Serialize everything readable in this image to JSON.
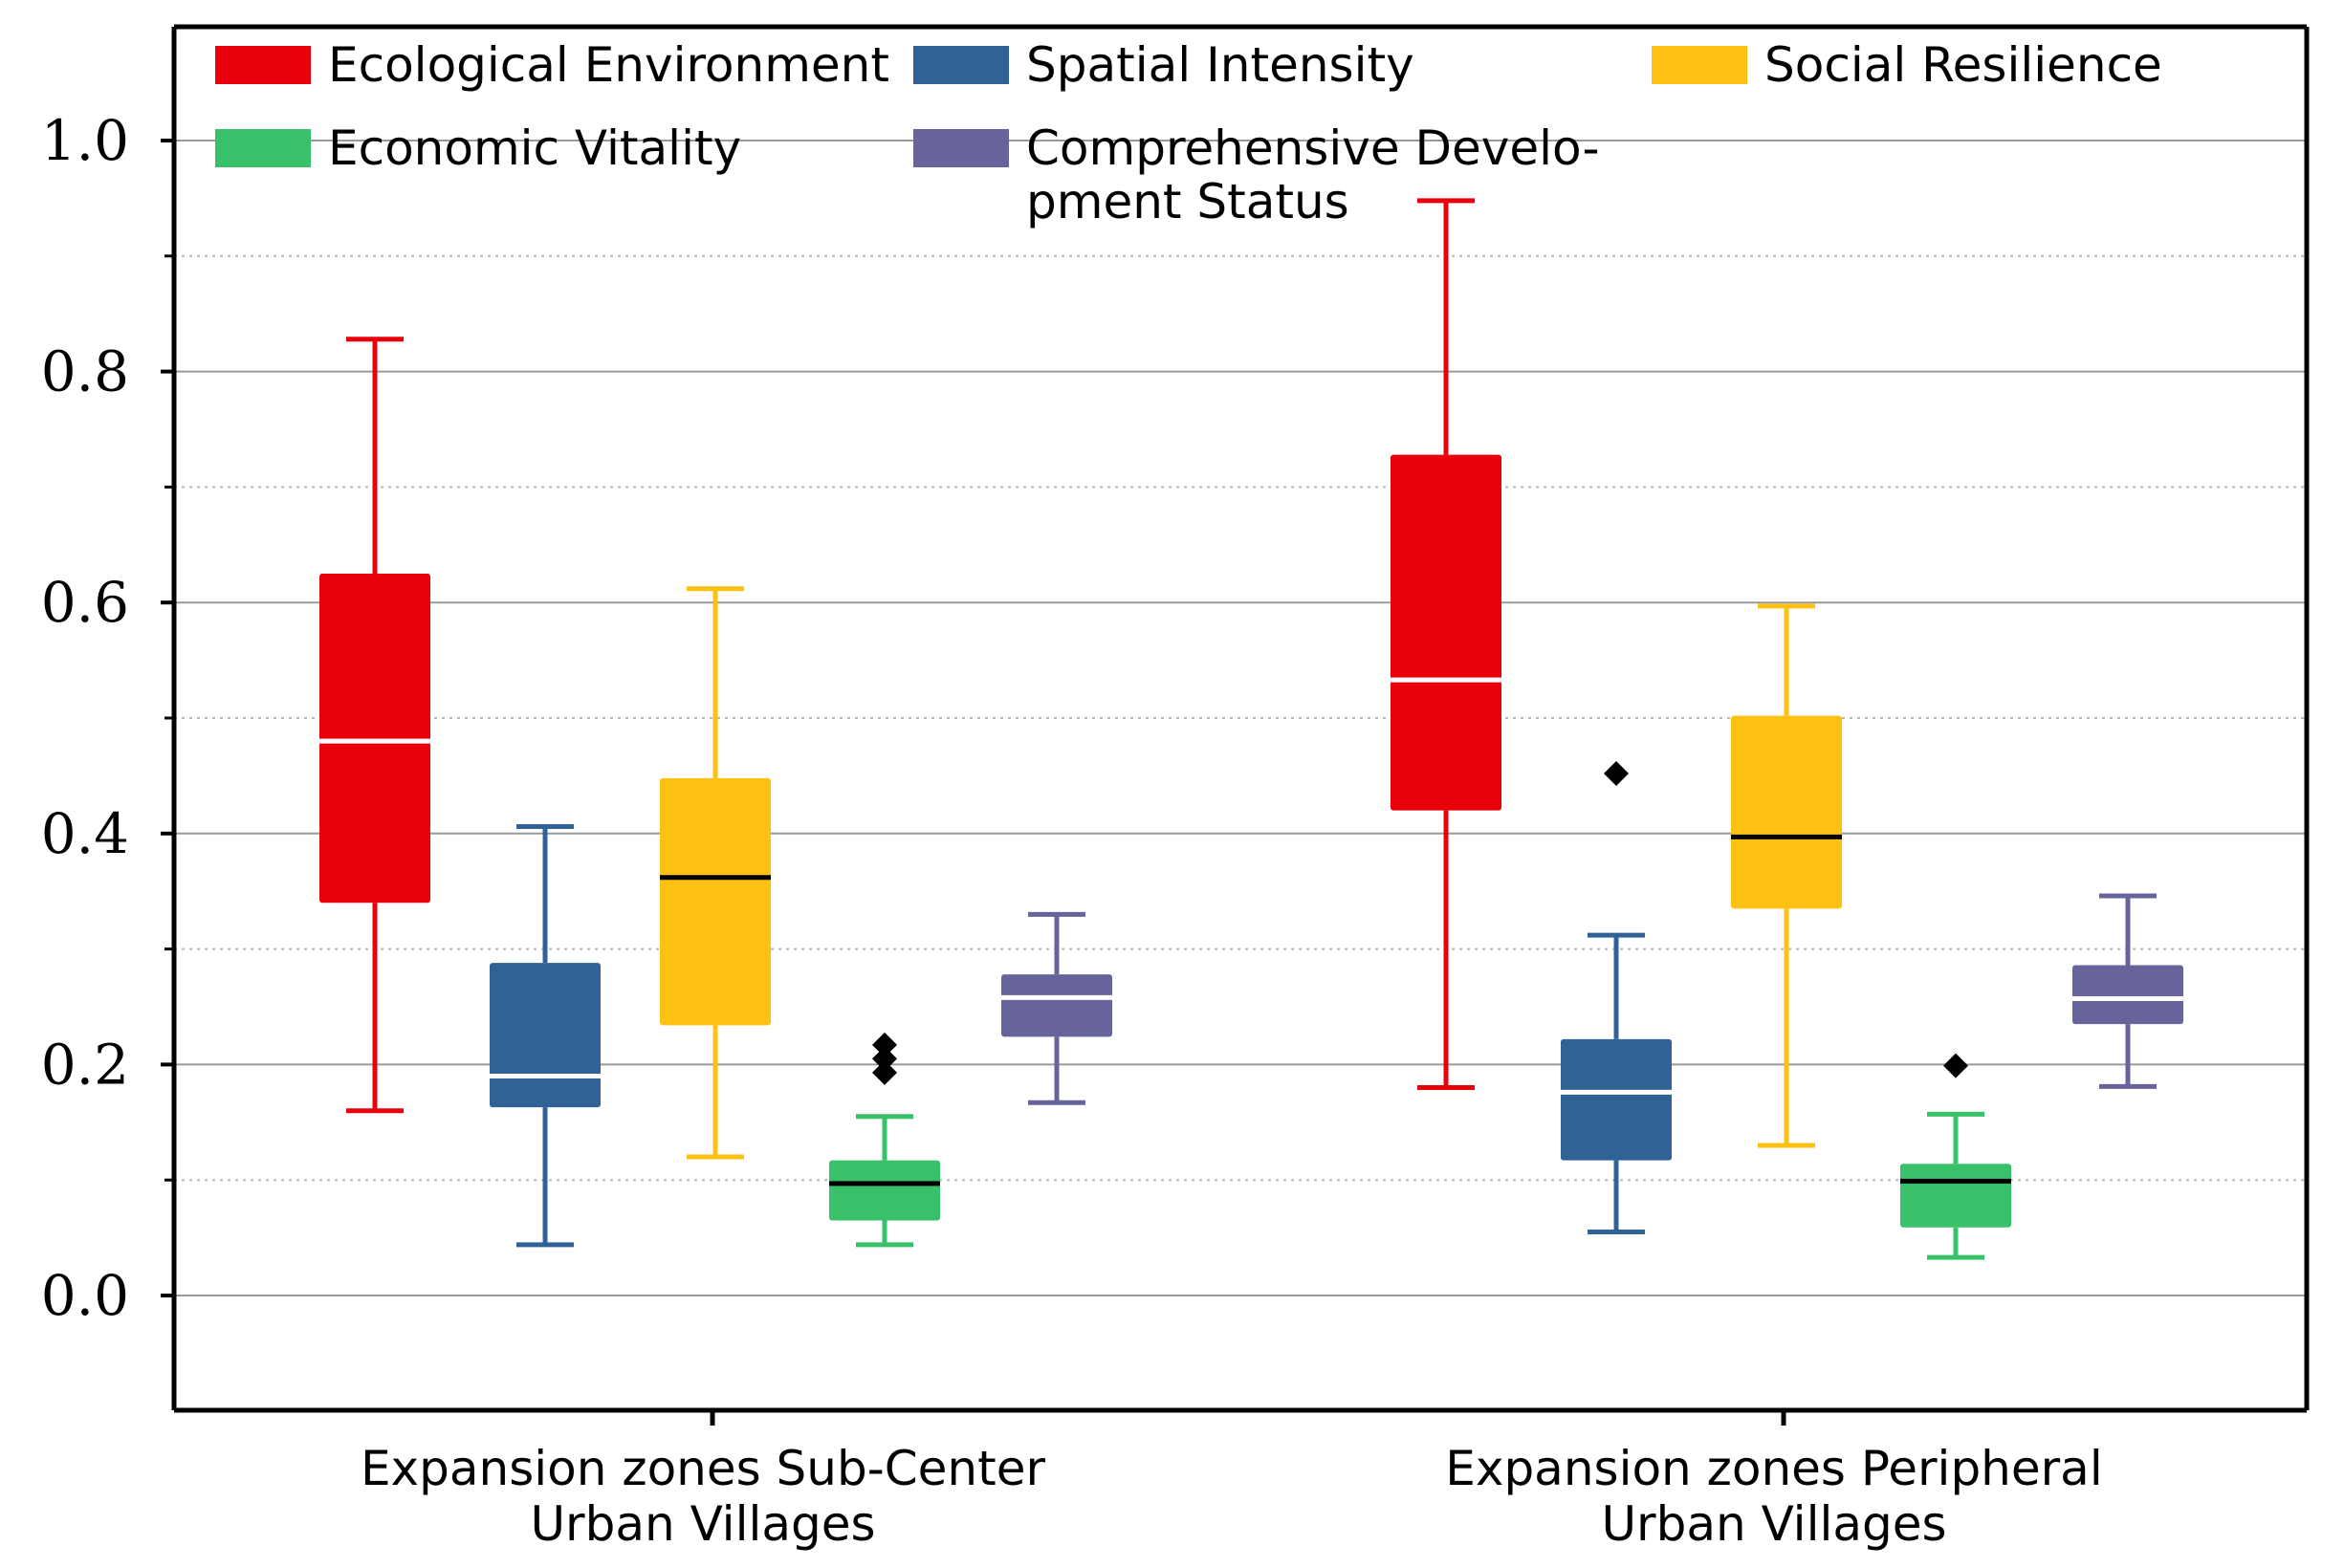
{
  "chart_data": {
    "type": "box",
    "title": "",
    "xlabel": "",
    "ylabel": "",
    "ylim": [
      -0.1,
      1.1
    ],
    "yticks": [
      "0.0",
      "0.2",
      "0.4",
      "0.6",
      "0.8",
      "1.0"
    ],
    "minor_gridlines": [
      0.1,
      0.3,
      0.5,
      0.7,
      0.9
    ],
    "categories": [
      [
        "Expansion zones Sub-Center",
        "Urban Villages"
      ],
      [
        "Expansion zones Peripheral",
        "Urban Villages"
      ]
    ],
    "series": [
      {
        "name": "Ecological Environment",
        "color": "#e8000b",
        "median_color": "#ffffff",
        "boxes": [
          {
            "whisker_low": 0.16,
            "q1": 0.34,
            "median": 0.48,
            "q3": 0.625,
            "whisker_high": 0.828,
            "outliers": []
          },
          {
            "whisker_low": 0.18,
            "q1": 0.42,
            "median": 0.533,
            "q3": 0.728,
            "whisker_high": 0.948,
            "outliers": []
          }
        ]
      },
      {
        "name": "Spatial Intensity",
        "color": "#2f6395",
        "median_color": "#ffffff",
        "boxes": [
          {
            "whisker_low": 0.044,
            "q1": 0.163,
            "median": 0.19,
            "q3": 0.288,
            "whisker_high": 0.406,
            "outliers": []
          },
          {
            "whisker_low": 0.055,
            "q1": 0.117,
            "median": 0.176,
            "q3": 0.222,
            "whisker_high": 0.312,
            "outliers": [
              0.452
            ]
          }
        ]
      },
      {
        "name": "Social Resilience",
        "color": "#fdc114",
        "median_color": "#000000",
        "boxes": [
          {
            "whisker_low": 0.12,
            "q1": 0.234,
            "median": 0.362,
            "q3": 0.448,
            "whisker_high": 0.612,
            "outliers": []
          },
          {
            "whisker_low": 0.13,
            "q1": 0.335,
            "median": 0.397,
            "q3": 0.502,
            "whisker_high": 0.597,
            "outliers": []
          }
        ]
      },
      {
        "name": "Economic Vitality",
        "color": "#38c06b",
        "median_color": "#000000",
        "boxes": [
          {
            "whisker_low": 0.044,
            "q1": 0.065,
            "median": 0.097,
            "q3": 0.117,
            "whisker_high": 0.155,
            "outliers": [
              0.193,
              0.205,
              0.217
            ]
          },
          {
            "whisker_low": 0.033,
            "q1": 0.059,
            "median": 0.099,
            "q3": 0.114,
            "whisker_high": 0.157,
            "outliers": [
              0.199
            ]
          }
        ]
      },
      {
        "name": "Comprehensive Develo-pment Status",
        "color": "#67639b",
        "median_color": "#ffffff",
        "boxes": [
          {
            "whisker_low": 0.167,
            "q1": 0.224,
            "median": 0.258,
            "q3": 0.278,
            "whisker_high": 0.33,
            "outliers": []
          },
          {
            "whisker_low": 0.181,
            "q1": 0.235,
            "median": 0.257,
            "q3": 0.286,
            "whisker_high": 0.346,
            "outliers": []
          }
        ]
      }
    ],
    "legend": {
      "placement": "top",
      "entries": [
        {
          "label_lines": [
            "Ecological Environment"
          ]
        },
        {
          "label_lines": [
            "Spatial Intensity"
          ]
        },
        {
          "label_lines": [
            "Social Resilience"
          ]
        },
        {
          "label_lines": [
            "Economic Vitality"
          ]
        },
        {
          "label_lines": [
            "Comprehensive Develo-",
            "pment Status"
          ]
        }
      ]
    }
  }
}
